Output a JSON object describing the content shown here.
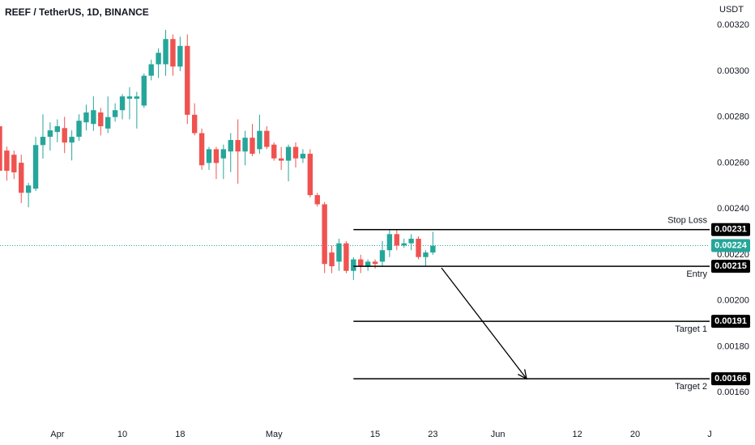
{
  "chart_data": {
    "type": "candlestick",
    "title": "REEF / TetherUS, 1D, BINANCE",
    "y_axis_label": "USDT",
    "categories": [
      null,
      null,
      null,
      null,
      null,
      null,
      null,
      null,
      "Apr",
      null,
      null,
      null,
      null,
      null,
      null,
      null,
      null,
      "10",
      null,
      null,
      null,
      null,
      null,
      null,
      null,
      "18",
      null,
      null,
      null,
      null,
      null,
      null,
      null,
      null,
      null,
      null,
      null,
      null,
      "May",
      null,
      null,
      null,
      null,
      null,
      null,
      null,
      null,
      null,
      null,
      null,
      null,
      null,
      "15",
      null,
      null,
      null,
      null,
      null,
      null,
      null,
      "23",
      null,
      null,
      null,
      null,
      null,
      null,
      null,
      null,
      "Jun",
      null,
      null,
      null,
      null,
      null,
      null,
      null,
      null,
      null,
      null,
      "12",
      null,
      null,
      null,
      null,
      null,
      null,
      null,
      "20",
      null,
      null,
      null,
      null,
      null,
      null,
      null,
      null,
      null,
      null,
      "J"
    ],
    "open": [
      0.00276,
      0.002654,
      0.002636,
      0.002601,
      0.00247,
      0.002488,
      0.002678,
      0.002714,
      0.002735,
      0.002752,
      0.002689,
      0.002714,
      0.002777,
      0.00277,
      0.00282,
      0.00275,
      0.0028,
      0.00283,
      0.00288,
      0.00288,
      0.00285,
      0.00298,
      0.00303,
      0.00303,
      0.00314,
      0.00302,
      0.00311,
      0.00281,
      0.00273,
      0.0026,
      0.00266,
      0.00262,
      0.00265,
      0.0027,
      0.00265,
      0.00271,
      0.00266,
      0.00274,
      0.00268,
      0.00262,
      0.00261,
      0.00267,
      0.00262,
      0.00264,
      0.00246,
      0.00242,
      0.00221,
      0.00217,
      0.00225,
      0.00213,
      0.00218,
      0.00215,
      0.00217,
      0.00217,
      0.00222,
      0.00229,
      0.00224,
      0.00225,
      0.00227,
      0.00219,
      0.00221,
      null,
      null,
      null,
      null,
      null,
      null,
      null,
      null,
      null,
      null,
      null,
      null,
      null,
      null,
      null,
      null,
      null,
      null,
      null,
      null,
      null,
      null,
      null,
      null,
      null,
      null,
      null,
      null,
      null,
      null,
      null,
      null,
      null,
      null,
      null,
      null,
      null,
      null,
      null
    ],
    "high": [
      0.00278,
      0.002671,
      0.002654,
      0.002636,
      0.002513,
      0.002714,
      0.002812,
      0.002777,
      0.00279,
      0.002801,
      0.002742,
      0.002812,
      0.002854,
      0.00289,
      0.00284,
      0.00289,
      0.00286,
      0.0029,
      0.00293,
      0.00291,
      0.00299,
      0.00305,
      0.0031,
      0.00318,
      0.00316,
      0.00315,
      0.00316,
      0.00286,
      0.00275,
      0.00267,
      0.00267,
      0.00268,
      0.00273,
      0.00279,
      0.00274,
      0.00277,
      0.00281,
      0.00276,
      0.00269,
      0.00267,
      0.00268,
      0.00269,
      0.00266,
      0.00266,
      0.00247,
      0.00243,
      0.00224,
      0.00227,
      0.00226,
      0.00219,
      0.0022,
      0.00218,
      0.00218,
      0.00226,
      0.00231,
      0.00231,
      0.00227,
      0.00229,
      0.00228,
      0.00222,
      0.0023,
      null,
      null,
      null,
      null,
      null,
      null,
      null,
      null,
      null,
      null,
      null,
      null,
      null,
      null,
      null,
      null,
      null,
      null,
      null,
      null,
      null,
      null,
      null,
      null,
      null,
      null,
      null,
      null,
      null,
      null,
      null,
      null,
      null,
      null,
      null,
      null,
      null,
      null,
      null
    ],
    "low": [
      0.00253,
      0.002523,
      0.00253,
      0.002425,
      0.002407,
      0.002478,
      0.002619,
      0.002654,
      0.00269,
      0.002643,
      0.002611,
      0.002696,
      0.002742,
      0.00274,
      0.00272,
      0.00273,
      0.00278,
      0.00279,
      0.00279,
      0.00275,
      0.00284,
      0.00296,
      0.00297,
      0.00298,
      0.00298,
      0.003,
      0.00277,
      0.00272,
      0.00257,
      0.00257,
      0.00253,
      0.00253,
      0.00256,
      0.00251,
      0.00259,
      0.00263,
      0.00264,
      0.00266,
      0.00261,
      0.00257,
      0.00252,
      0.00258,
      0.0026,
      0.00245,
      0.00241,
      0.00212,
      0.00212,
      0.00213,
      0.00212,
      0.00209,
      0.00212,
      0.00213,
      0.00214,
      0.00215,
      0.00219,
      0.00222,
      0.00223,
      0.00222,
      0.00218,
      0.00215,
      0.0022,
      null,
      null,
      null,
      null,
      null,
      null,
      null,
      null,
      null,
      null,
      null,
      null,
      null,
      null,
      null,
      null,
      null,
      null,
      null,
      null,
      null,
      null,
      null,
      null,
      null,
      null,
      null,
      null,
      null,
      null,
      null,
      null,
      null,
      null,
      null,
      null,
      null,
      null,
      null
    ],
    "close": [
      0.002566,
      0.002566,
      0.002559,
      0.00247,
      0.002502,
      0.002678,
      0.002714,
      0.002742,
      0.00276,
      0.002689,
      0.002714,
      0.002784,
      0.00282,
      0.00283,
      0.00276,
      0.0028,
      0.00283,
      0.00289,
      0.00289,
      0.00289,
      0.00298,
      0.00303,
      0.00308,
      0.00314,
      0.00302,
      0.00311,
      0.00281,
      0.00273,
      0.00259,
      0.00266,
      0.0026,
      0.00266,
      0.0027,
      0.00265,
      0.00271,
      0.00264,
      0.00274,
      0.00267,
      0.00262,
      0.00261,
      0.00267,
      0.00262,
      0.00264,
      0.00246,
      0.00242,
      0.00216,
      0.00215,
      0.00225,
      0.00213,
      0.00218,
      0.00215,
      0.00217,
      0.00216,
      0.00222,
      0.00229,
      0.00224,
      0.00225,
      0.00227,
      0.00219,
      0.00221,
      0.00224,
      null,
      null,
      null,
      null,
      null,
      null,
      null,
      null,
      null,
      null,
      null,
      null,
      null,
      null,
      null,
      null,
      null,
      null,
      null,
      null,
      null,
      null,
      null,
      null,
      null,
      null,
      null,
      null,
      null,
      null,
      null,
      null,
      null,
      null,
      null,
      null,
      null,
      null,
      null
    ],
    "up_color": "#26a69a",
    "down_color": "#ef5350",
    "ylim": [
      0.00147,
      0.00331
    ],
    "yticks": [
      {
        "value": 0.0032,
        "label": "0.00320"
      },
      {
        "value": 0.003,
        "label": "0.00300"
      },
      {
        "value": 0.0028,
        "label": "0.00280"
      },
      {
        "value": 0.0026,
        "label": "0.00260"
      },
      {
        "value": 0.0024,
        "label": "0.00240"
      },
      {
        "value": 0.0022,
        "label": "0.00220"
      },
      {
        "value": 0.002,
        "label": "0.00200"
      },
      {
        "value": 0.0018,
        "label": "0.00180"
      },
      {
        "value": 0.0016,
        "label": "0.00160"
      }
    ],
    "grid": false,
    "levels": [
      {
        "name": "Stop Loss",
        "value": 0.00231
      },
      {
        "name": "Entry",
        "value": 0.00215
      },
      {
        "name": "Target 1",
        "value": 0.00191
      },
      {
        "name": "Target 2",
        "value": 0.00166
      }
    ],
    "last_price": 0.00224
  }
}
